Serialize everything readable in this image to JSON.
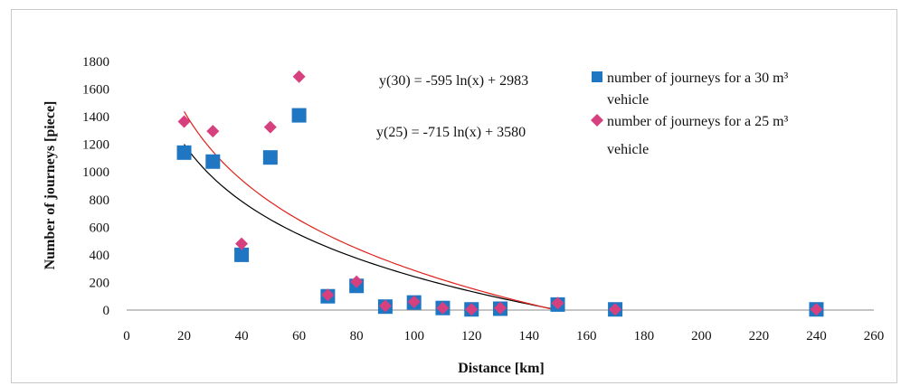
{
  "chart_data": {
    "type": "scatter",
    "xlabel": "Distance [km]",
    "ylabel": "Number of journeys [piece]",
    "xlim": [
      0,
      260
    ],
    "ylim": [
      0,
      1800
    ],
    "x_ticks": [
      0,
      20,
      40,
      60,
      80,
      100,
      120,
      140,
      160,
      180,
      200,
      220,
      240,
      260
    ],
    "y_ticks": [
      0,
      200,
      400,
      600,
      800,
      1000,
      1200,
      1400,
      1600,
      1800
    ],
    "grid": false,
    "legend_position": "right",
    "series": [
      {
        "name": "number of  journeys for a 30 m³ vehicle",
        "legend_lines": [
          "number of  journeys for a 30 m³",
          "vehicle"
        ],
        "marker": "square",
        "color": "#1f77c4",
        "x": [
          20,
          30,
          40,
          50,
          60,
          70,
          80,
          90,
          100,
          110,
          120,
          130,
          150,
          170,
          240
        ],
        "y": [
          1140,
          1075,
          400,
          1105,
          1410,
          100,
          175,
          25,
          55,
          15,
          5,
          10,
          40,
          5,
          5
        ]
      },
      {
        "name": "number of  journeys for a 25 m³ vehicle",
        "legend_lines": [
          "number of  journeys for a 25 m³",
          "vehicle"
        ],
        "marker": "diamond",
        "color": "#d6407e",
        "x": [
          20,
          30,
          40,
          50,
          60,
          70,
          80,
          90,
          100,
          110,
          120,
          130,
          150,
          170,
          240
        ],
        "y": [
          1365,
          1295,
          480,
          1325,
          1690,
          110,
          205,
          30,
          60,
          15,
          5,
          15,
          50,
          5,
          5
        ]
      }
    ],
    "trendlines": [
      {
        "label": "y(30) = -595 ln(x) + 2983",
        "a": -595,
        "b": 2983,
        "x_range": [
          20,
          148
        ],
        "color": "#000000"
      },
      {
        "label": "y(25) = -715 ln(x) + 3580",
        "a": -715,
        "b": 3580,
        "x_range": [
          20,
          148
        ],
        "color": "#e0201a"
      }
    ]
  }
}
